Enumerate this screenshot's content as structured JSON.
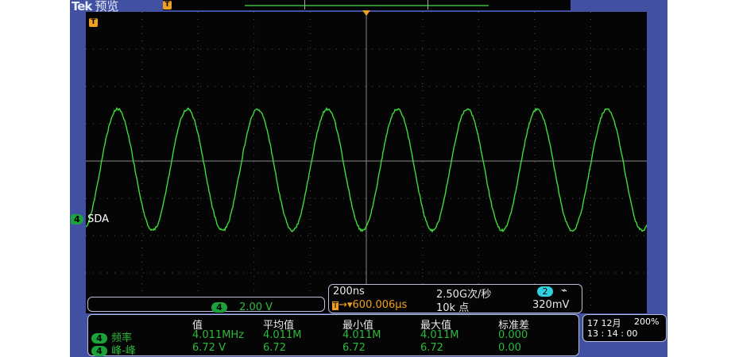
{
  "header": {
    "brand": "Tek",
    "mode": "预览"
  },
  "channel": {
    "number": "4",
    "label": "SDA",
    "color": "#2db83d",
    "scale": "2.00 V"
  },
  "timebase": {
    "scale": "200ns",
    "sample_rate": "2.50G次/秒",
    "position": "600.006µs",
    "record_length": "10k 点",
    "trigger_channel": "2",
    "trigger_slope": "falling",
    "trigger_level": "320mV"
  },
  "measurements": {
    "headers": [
      "值",
      "平均值",
      "最小值",
      "最大值",
      "标准差"
    ],
    "rows": [
      {
        "channel": "4",
        "name": "频率",
        "values": [
          "4.011MHz",
          "4.011M",
          "4.011M",
          "4.011M",
          "0.000"
        ]
      },
      {
        "channel": "4",
        "name": "峰-峰",
        "values": [
          "6.72 V",
          "6.72",
          "6.72",
          "6.72",
          "0.00"
        ]
      }
    ]
  },
  "status": {
    "date": "17 12月",
    "zoom": "200%",
    "time": "13 : 14 : 00"
  },
  "waveform": {
    "frequency_mhz": 4.011,
    "peak_to_peak_v": 6.72,
    "volts_per_div": 2.0,
    "ns_per_div": 200,
    "color": "#3ddc3a"
  },
  "trigger_marker": "T",
  "colors": {
    "frame": "#4150a0",
    "screen": "#050505",
    "trace": "#3ddc3a",
    "trigger": "#f0a020"
  }
}
